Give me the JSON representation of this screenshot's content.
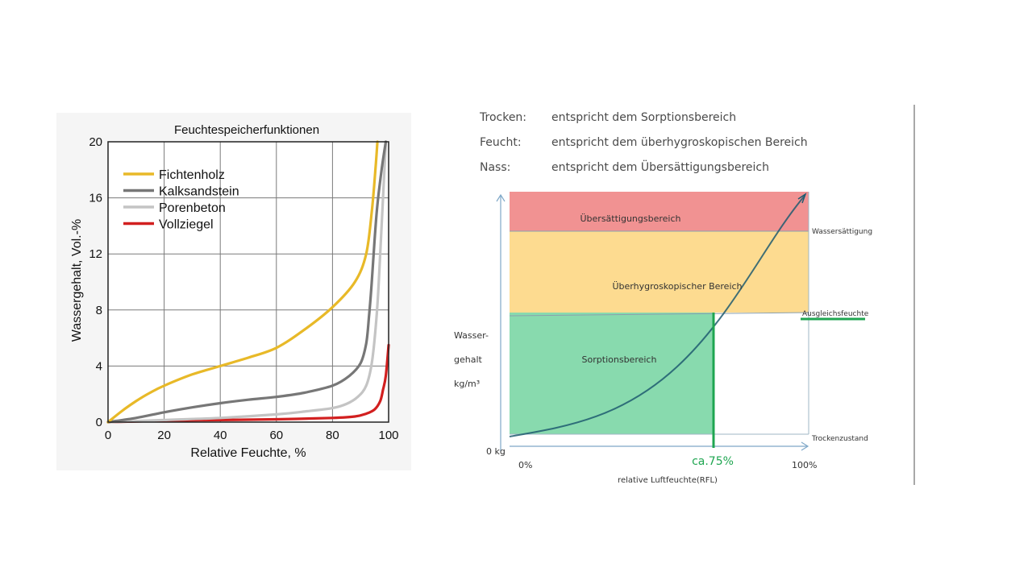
{
  "chart_data": [
    {
      "type": "line",
      "title": "Feuchtespeicherfunktionen",
      "xlabel": "Relative Feuchte, %",
      "ylabel": "Wassergehalt, Vol.-%",
      "xlim": [
        0,
        100
      ],
      "ylim": [
        0,
        20
      ],
      "x_ticks": [
        0,
        20,
        40,
        60,
        80,
        100
      ],
      "y_ticks": [
        0,
        4,
        8,
        12,
        16,
        20
      ],
      "x_tick_labels": [
        "0",
        "20",
        "40",
        "60",
        "80",
        "100"
      ],
      "y_tick_labels": [
        "0",
        "4",
        "8",
        "12",
        "16",
        "20"
      ],
      "grid": true,
      "legend_position": "top-left",
      "series": [
        {
          "name": "Fichtenholz",
          "color": "#e8b928",
          "points": [
            [
              0,
              0
            ],
            [
              5,
              0.8
            ],
            [
              10,
              1.5
            ],
            [
              15,
              2.1
            ],
            [
              20,
              2.6
            ],
            [
              30,
              3.4
            ],
            [
              40,
              4.0
            ],
            [
              50,
              4.6
            ],
            [
              60,
              5.3
            ],
            [
              70,
              6.6
            ],
            [
              80,
              8.2
            ],
            [
              88,
              10.0
            ],
            [
              92,
              12.0
            ],
            [
              94,
              15.0
            ],
            [
              95.3,
              18.0
            ],
            [
              96,
              20
            ]
          ]
        },
        {
          "name": "Kalksandstein",
          "color": "#777777",
          "points": [
            [
              0,
              0
            ],
            [
              10,
              0.3
            ],
            [
              20,
              0.7
            ],
            [
              30,
              1.05
            ],
            [
              40,
              1.35
            ],
            [
              50,
              1.6
            ],
            [
              60,
              1.8
            ],
            [
              70,
              2.1
            ],
            [
              80,
              2.6
            ],
            [
              86,
              3.3
            ],
            [
              90,
              4.2
            ],
            [
              92,
              5.6
            ],
            [
              93,
              7.5
            ],
            [
              94,
              10.0
            ],
            [
              95,
              13.0
            ],
            [
              96,
              15.5
            ],
            [
              97.5,
              18.0
            ],
            [
              99,
              20
            ]
          ]
        },
        {
          "name": "Porenbeton",
          "color": "#c4c4c4",
          "points": [
            [
              0,
              0
            ],
            [
              20,
              0.15
            ],
            [
              40,
              0.3
            ],
            [
              60,
              0.55
            ],
            [
              70,
              0.75
            ],
            [
              80,
              1.0
            ],
            [
              85,
              1.3
            ],
            [
              89,
              1.8
            ],
            [
              92,
              2.6
            ],
            [
              94,
              4.2
            ],
            [
              95.5,
              7.0
            ],
            [
              96.5,
              10.0
            ],
            [
              97.5,
              14.0
            ],
            [
              98.5,
              18.0
            ],
            [
              99,
              20
            ]
          ]
        },
        {
          "name": "Vollziegel",
          "color": "#d21f1f",
          "points": [
            [
              0,
              0
            ],
            [
              20,
              0.1
            ],
            [
              40,
              0.15
            ],
            [
              60,
              0.2
            ],
            [
              80,
              0.3
            ],
            [
              88,
              0.4
            ],
            [
              92,
              0.6
            ],
            [
              95,
              0.9
            ],
            [
              97,
              1.5
            ],
            [
              98,
              2.3
            ],
            [
              99,
              3.3
            ],
            [
              100,
              5.5
            ]
          ]
        }
      ]
    },
    {
      "type": "area",
      "title": "",
      "descriptions": [
        {
          "term": "Trocken:",
          "text": "entspricht dem Sorptionsbereich"
        },
        {
          "term": "Feucht:",
          "text": "entspricht dem überhygroskopischen Bereich"
        },
        {
          "term": "Nass:",
          "text": "entspricht dem Übersättigungsbereich"
        }
      ],
      "ylabel_lines": [
        "Wasser-",
        "gehalt",
        "kg/m³"
      ],
      "xlabel": "relative Luftfeuchte(RFL)",
      "x_tick_labels": [
        "0%",
        "100%"
      ],
      "y_origin_label": "0 kg",
      "zones": [
        {
          "name": "Übersättigungsbereich",
          "color": "#f08c8c"
        },
        {
          "name": "Überhygroskopischer Bereich",
          "color": "#fdd98a"
        },
        {
          "name": "Sorptionsbereich",
          "color": "#82d8aa"
        }
      ],
      "levels": [
        "Wassersättigung",
        "Ausgleichsfeuchte",
        "Trockenzustand"
      ],
      "marker_label": "ca.75%",
      "marker_value": 75,
      "colors": {
        "marker": "#1fa651",
        "curve": "#1e5b70"
      }
    }
  ]
}
